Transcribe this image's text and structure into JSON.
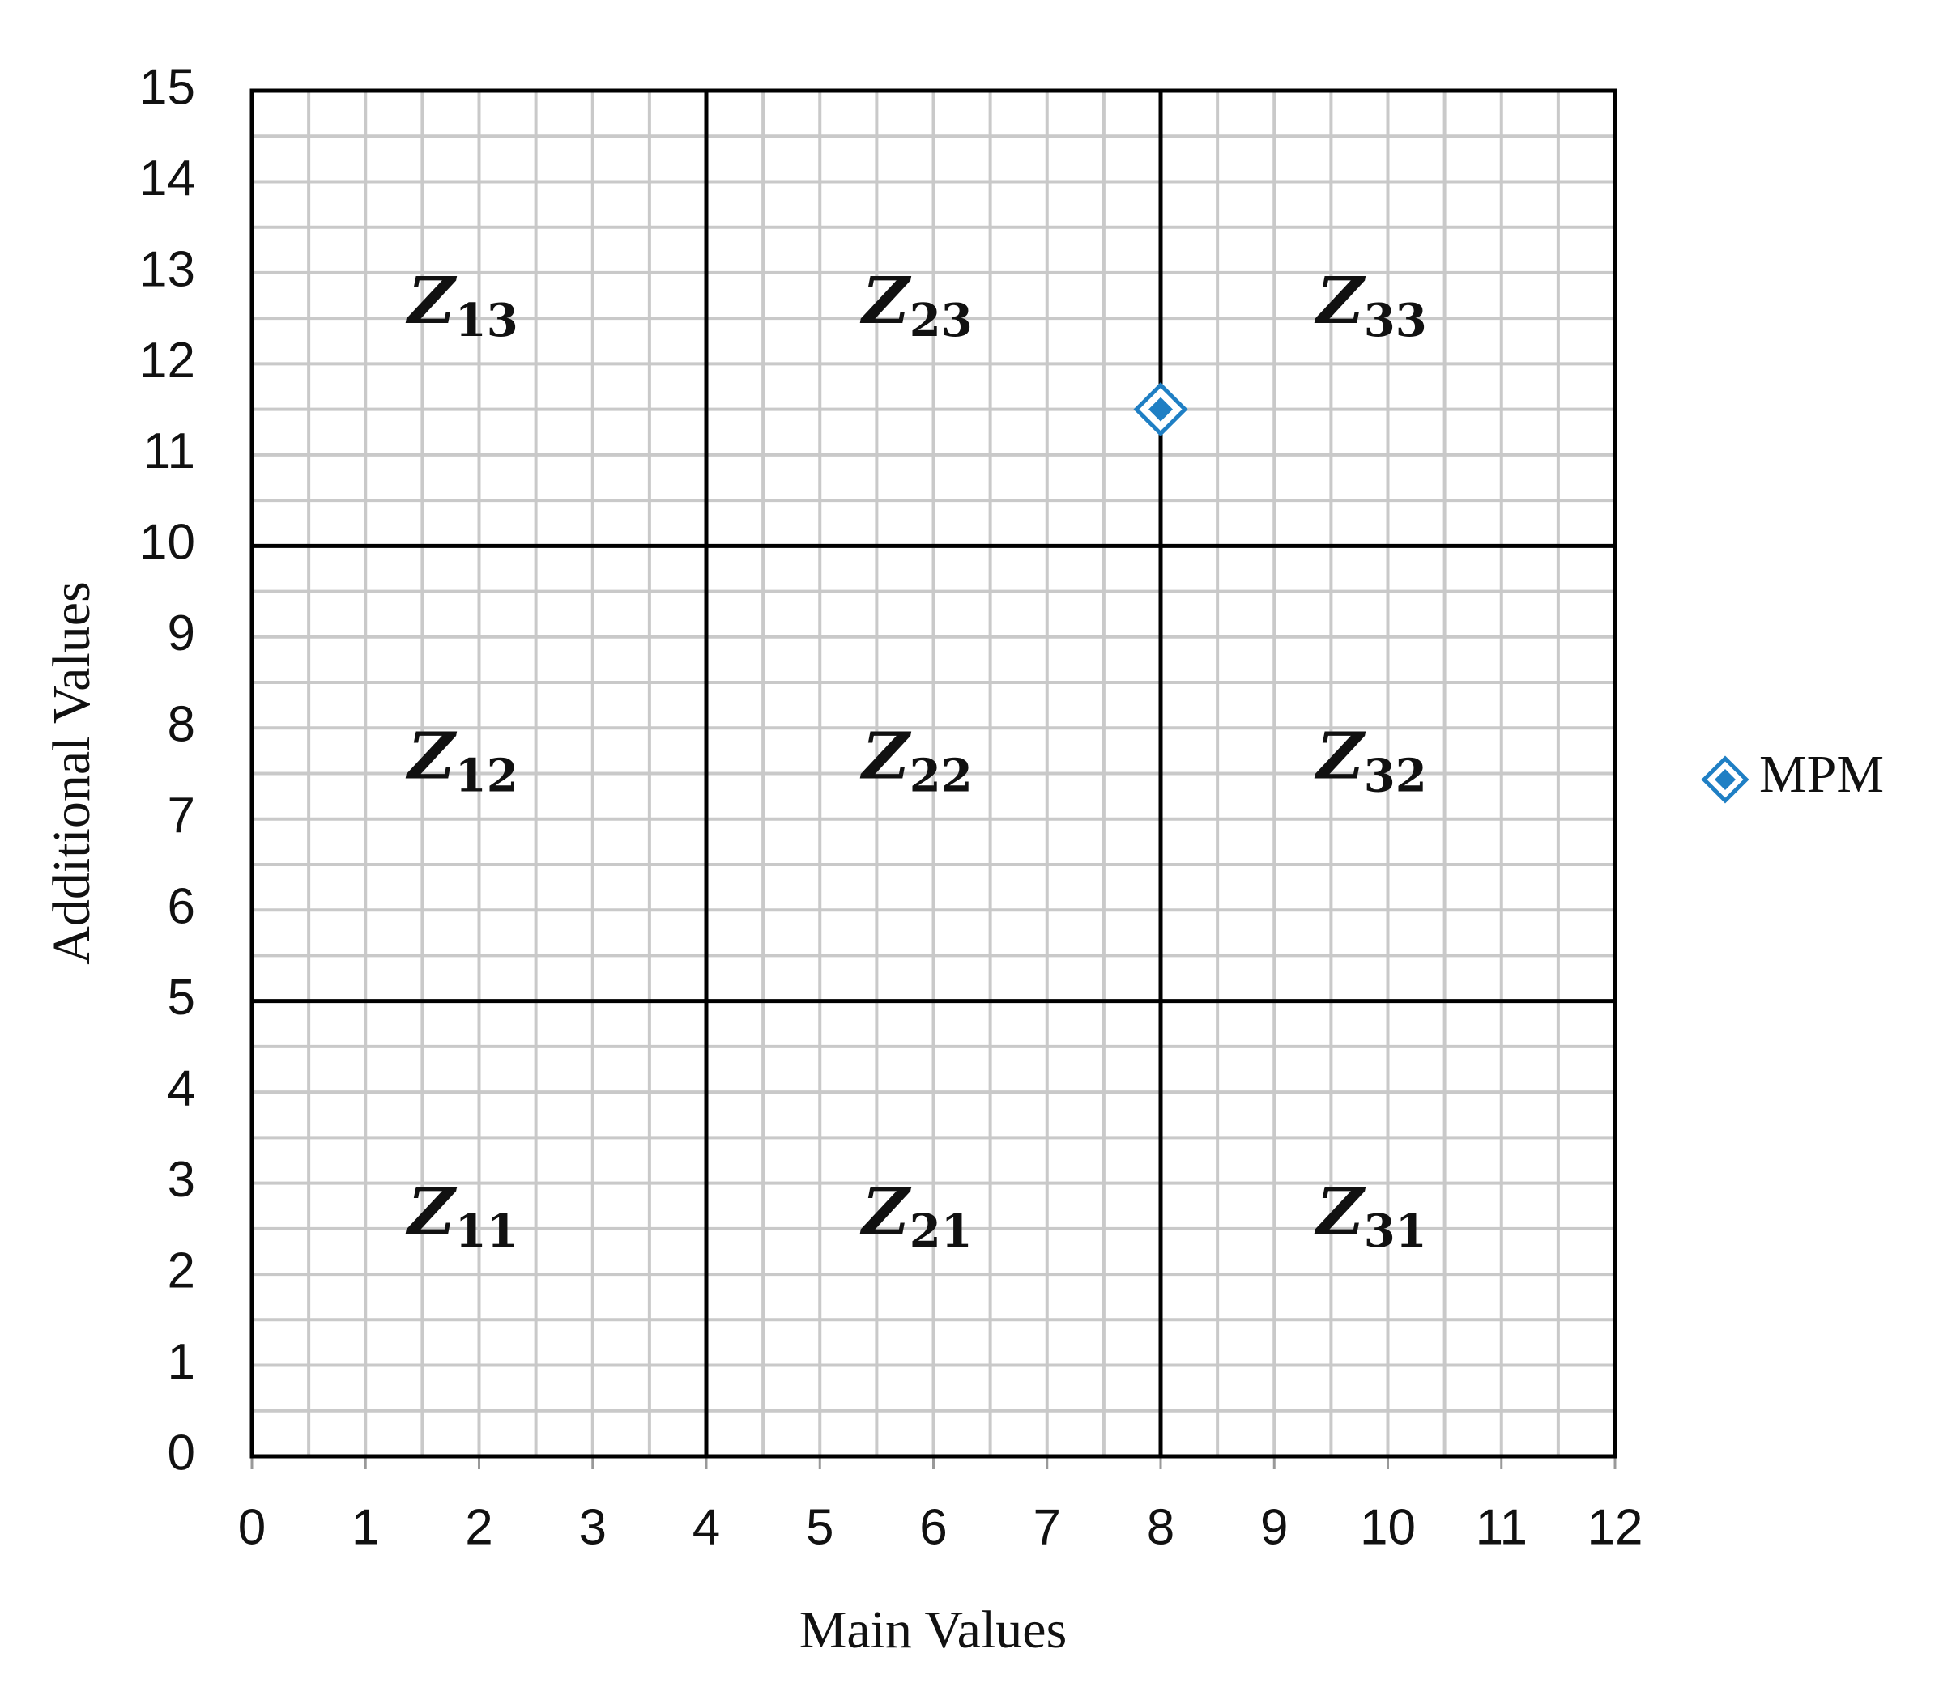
{
  "chart_data": {
    "type": "scatter",
    "x_label": "Main Values",
    "y_label": "Additional Values",
    "series": [
      {
        "name": "MPM",
        "color": "#1f7fc4",
        "x": [
          8
        ],
        "values": [
          11.5
        ]
      }
    ],
    "xlim": [
      0,
      12
    ],
    "xticks": [
      0,
      1,
      2,
      3,
      4,
      5,
      6,
      7,
      8,
      9,
      10,
      11,
      12
    ],
    "ylim": [
      0,
      15
    ],
    "yticks": [
      0,
      1,
      2,
      3,
      4,
      5,
      6,
      7,
      8,
      9,
      10,
      11,
      12,
      13,
      14,
      15
    ],
    "grid": true,
    "grid_step": 0.5,
    "legend": "right",
    "zone_x": [
      4,
      8
    ],
    "zone_y": [
      5,
      10
    ],
    "zones": [
      {
        "symbol": "Z",
        "index": "11"
      },
      {
        "symbol": "Z",
        "index": "12"
      },
      {
        "symbol": "Z",
        "index": "13"
      },
      {
        "symbol": "Z",
        "index": "21"
      },
      {
        "symbol": "Z",
        "index": "22"
      },
      {
        "symbol": "Z",
        "index": "23"
      },
      {
        "symbol": "Z",
        "index": "31"
      },
      {
        "symbol": "Z",
        "index": "32"
      },
      {
        "symbol": "Z",
        "index": "33"
      }
    ]
  }
}
